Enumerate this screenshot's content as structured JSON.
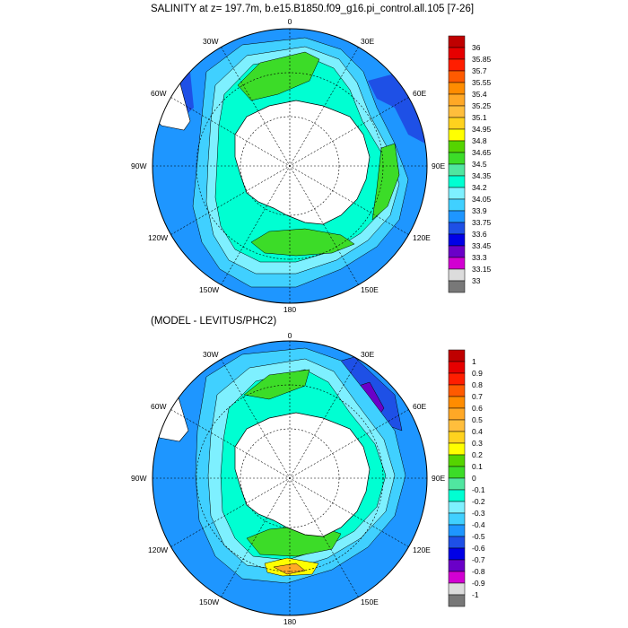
{
  "panel1": {
    "title": "SALINITY at z= 197.7m, b.e15.B1850.f09_g16.pi_control.all.105 [7-26]",
    "lon_labels": {
      "n": "0",
      "nne": "30E",
      "ene": "60E",
      "e": "90E",
      "ese": "120E",
      "sse": "150E",
      "s": "180",
      "ssw": "150W",
      "wsw": "120W",
      "w": "90W",
      "wnw": "60W",
      "nnw": "30W"
    },
    "colorbar": {
      "labels": [
        "36",
        "35.85",
        "35.7",
        "35.55",
        "35.4",
        "35.25",
        "35.1",
        "34.95",
        "34.8",
        "34.65",
        "34.5",
        "34.35",
        "34.2",
        "34.05",
        "33.9",
        "33.75",
        "33.6",
        "33.45",
        "33.3",
        "33.15",
        "33"
      ],
      "colors": [
        "#bf0000",
        "#e60000",
        "#ff1e00",
        "#ff5a00",
        "#ff8c00",
        "#ffa826",
        "#ffbe3c",
        "#ffd21e",
        "#ffff00",
        "#55d400",
        "#3cdc28",
        "#50e6a0",
        "#00ffd2",
        "#7ef0ff",
        "#40d0ff",
        "#1e96ff",
        "#1e50e6",
        "#0000e6",
        "#6a00c8",
        "#d200d2",
        "#dcdcdc",
        "#787878"
      ]
    }
  },
  "panel2": {
    "title": "(MODEL - LEVITUS/PHC2)",
    "lon_labels": {
      "n": "0",
      "nne": "30E",
      "ene": "60E",
      "e": "90E",
      "ese": "120E",
      "sse": "150E",
      "s": "180",
      "ssw": "150W",
      "wsw": "120W",
      "w": "90W",
      "wnw": "60W",
      "nnw": "30W"
    },
    "colorbar": {
      "labels": [
        "1",
        "0.9",
        "0.8",
        "0.7",
        "0.6",
        "0.5",
        "0.4",
        "0.3",
        "0.2",
        "0.1",
        "0",
        "-0.1",
        "-0.2",
        "-0.3",
        "-0.4",
        "-0.5",
        "-0.6",
        "-0.7",
        "-0.8",
        "-0.9",
        "-1"
      ],
      "colors": [
        "#bf0000",
        "#e60000",
        "#ff1e00",
        "#ff5a00",
        "#ff8c00",
        "#ffa826",
        "#ffbe3c",
        "#ffd21e",
        "#ffff00",
        "#55d400",
        "#3cdc28",
        "#50e6a0",
        "#00ffd2",
        "#7ef0ff",
        "#40d0ff",
        "#1e96ff",
        "#1e50e6",
        "#0000e6",
        "#6a00c8",
        "#d200d2",
        "#dcdcdc",
        "#787878"
      ]
    }
  }
}
